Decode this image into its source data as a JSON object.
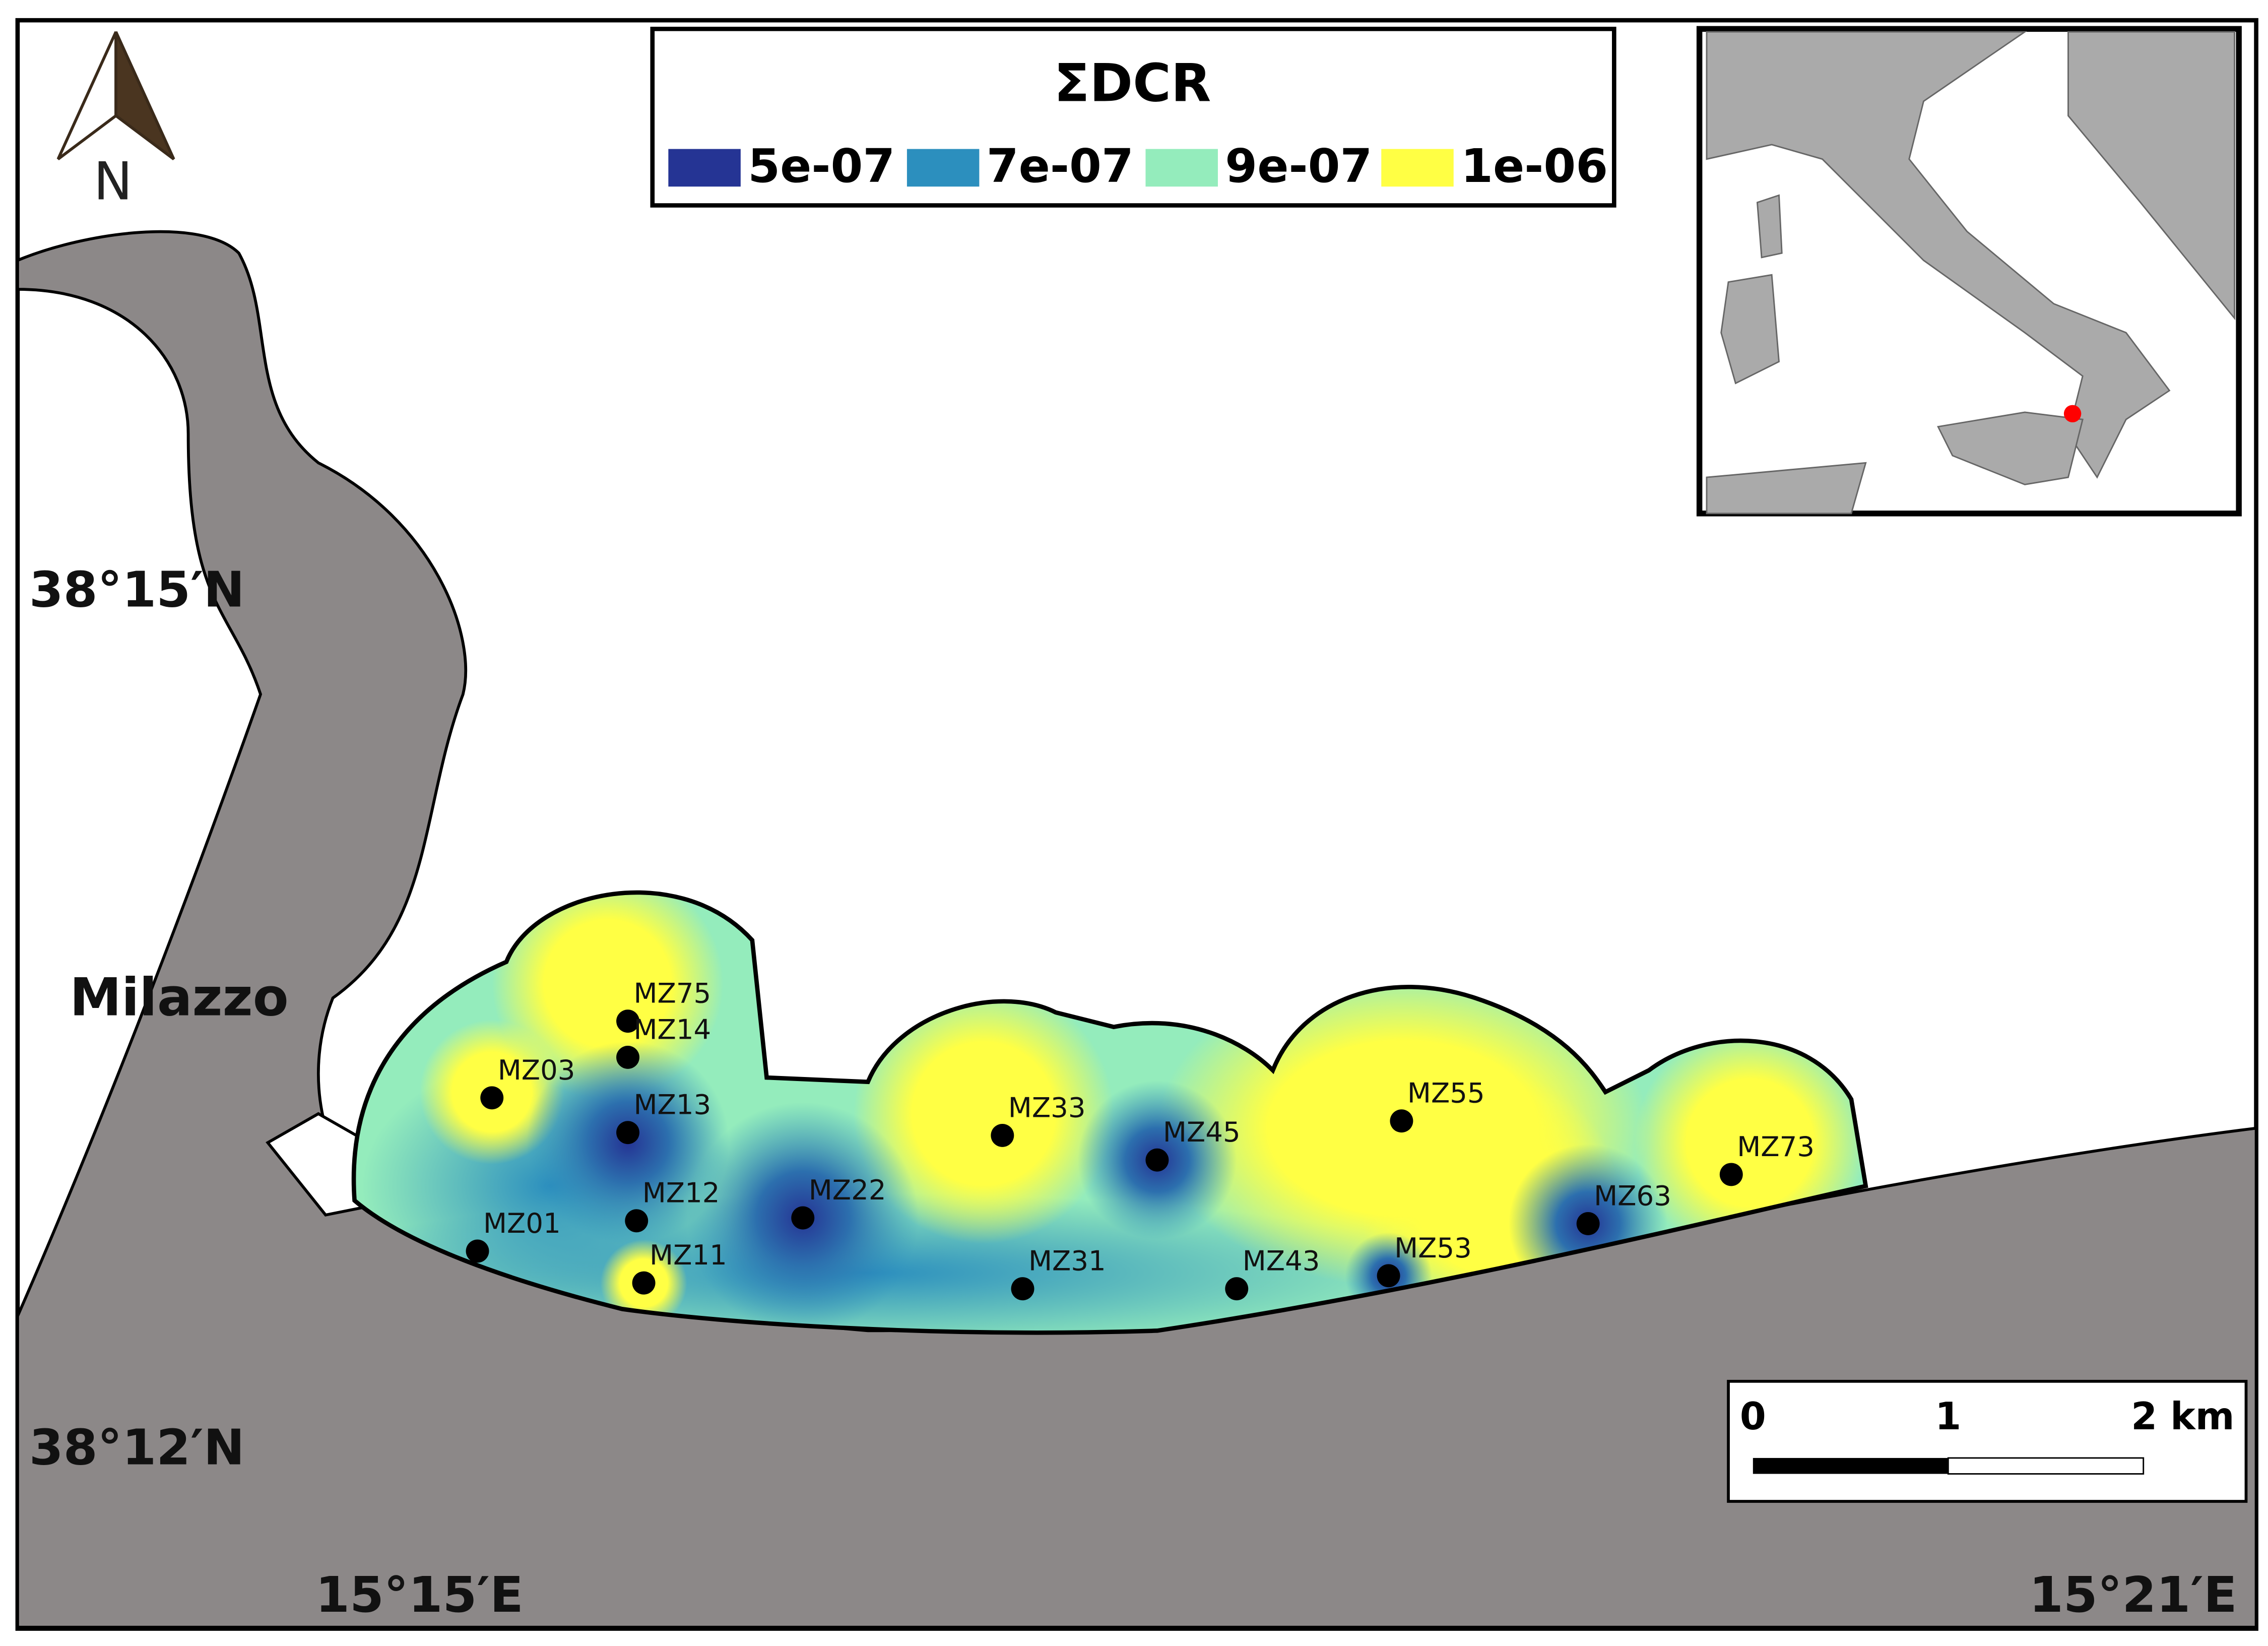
{
  "legend": {
    "title": "ΣDCR",
    "items": [
      {
        "label": "5e-07",
        "color": "#253494"
      },
      {
        "label": "7e-07",
        "color": "#2c8fbe"
      },
      {
        "label": "9e-07",
        "color": "#94ecbc"
      },
      {
        "label": "1e-06",
        "color": "#ffff44"
      }
    ]
  },
  "north": "N",
  "place": "Milazzo",
  "coords": {
    "lat_top": "38°15′N",
    "lat_bottom": "38°12′N",
    "lon_left": "15°15′E",
    "lon_right": "15°21′E"
  },
  "scale_bar": {
    "labels": [
      "0",
      "1",
      "2 km"
    ]
  },
  "stations": [
    "MZ75",
    "MZ14",
    "MZ03",
    "MZ13",
    "MZ12",
    "MZ01",
    "MZ11",
    "MZ22",
    "MZ33",
    "MZ31",
    "MZ45",
    "MZ43",
    "MZ55",
    "MZ53",
    "MZ63",
    "MZ73"
  ]
}
